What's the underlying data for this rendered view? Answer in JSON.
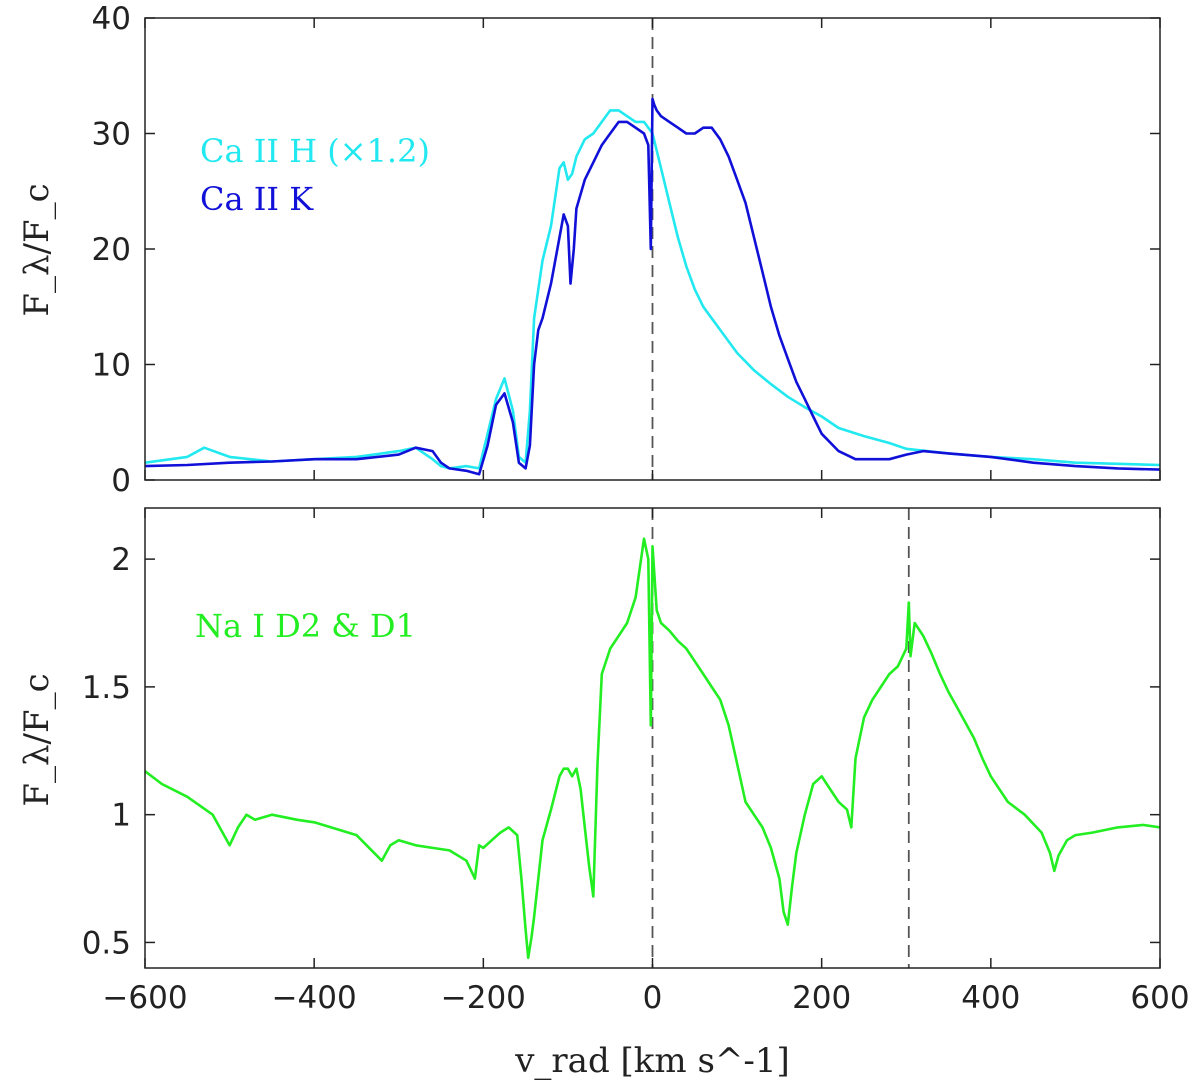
{
  "chart_data": [
    {
      "type": "line",
      "panel": "top",
      "ylabel": "F_λ/F_c",
      "xlim": [
        -600,
        600
      ],
      "ylim": [
        0,
        40
      ],
      "y_ticks": [
        0,
        10,
        20,
        30,
        40
      ],
      "x_tick_labels_shown": false,
      "reference_lines_x": [
        0
      ],
      "legend_placement": "upper-left",
      "series": [
        {
          "name": "Ca II H (×1.2)",
          "color": "#22e8f0",
          "x": [
            -600,
            -550,
            -530,
            -500,
            -450,
            -400,
            -350,
            -300,
            -280,
            -260,
            -250,
            -240,
            -220,
            -205,
            -195,
            -185,
            -175,
            -165,
            -158,
            -150,
            -145,
            -140,
            -130,
            -120,
            -110,
            -105,
            -100,
            -95,
            -90,
            -80,
            -70,
            -60,
            -50,
            -40,
            -30,
            -20,
            -10,
            -5,
            0,
            10,
            20,
            30,
            40,
            50,
            60,
            70,
            80,
            90,
            100,
            120,
            140,
            160,
            180,
            200,
            220,
            250,
            280,
            300,
            350,
            400,
            450,
            500,
            550,
            600
          ],
          "y": [
            1.5,
            2.0,
            2.8,
            2.0,
            1.6,
            1.8,
            2.0,
            2.5,
            2.8,
            1.8,
            1.2,
            1.0,
            1.2,
            1.0,
            4.0,
            7.0,
            8.8,
            6.0,
            2.0,
            1.5,
            6.0,
            14.0,
            19.0,
            22.0,
            27.0,
            27.5,
            26.0,
            26.5,
            28.0,
            29.5,
            30.0,
            31.0,
            32.0,
            32.0,
            31.5,
            31.0,
            31.0,
            30.5,
            30.0,
            27.0,
            24.0,
            21.0,
            18.5,
            16.5,
            15.0,
            14.0,
            13.0,
            12.0,
            11.0,
            9.5,
            8.3,
            7.2,
            6.3,
            5.5,
            4.5,
            3.8,
            3.2,
            2.7,
            2.3,
            2.0,
            1.8,
            1.5,
            1.4,
            1.3
          ]
        },
        {
          "name": "Ca II K",
          "color": "#1010d8",
          "x": [
            -600,
            -550,
            -500,
            -450,
            -400,
            -350,
            -300,
            -280,
            -260,
            -250,
            -240,
            -220,
            -205,
            -195,
            -185,
            -175,
            -165,
            -158,
            -150,
            -145,
            -140,
            -135,
            -130,
            -120,
            -110,
            -105,
            -100,
            -97,
            -93,
            -90,
            -80,
            -70,
            -60,
            -50,
            -40,
            -30,
            -20,
            -10,
            -5,
            -2,
            0,
            2,
            5,
            10,
            20,
            30,
            40,
            50,
            60,
            70,
            80,
            90,
            100,
            110,
            120,
            130,
            140,
            150,
            160,
            170,
            180,
            190,
            200,
            220,
            240,
            260,
            280,
            300,
            320,
            350,
            400,
            450,
            500,
            550,
            600
          ],
          "y": [
            1.2,
            1.3,
            1.5,
            1.6,
            1.8,
            1.8,
            2.2,
            2.8,
            2.5,
            1.5,
            1.0,
            0.8,
            0.5,
            3.0,
            6.5,
            7.5,
            5.0,
            1.5,
            1.0,
            3.0,
            10.0,
            13.0,
            14.0,
            17.0,
            21.0,
            23.0,
            22.0,
            17.0,
            20.0,
            23.5,
            26.0,
            27.5,
            29.0,
            30.0,
            31.0,
            31.0,
            30.5,
            30.0,
            29.0,
            20.0,
            33.0,
            32.5,
            32.0,
            31.5,
            31.0,
            30.5,
            30.0,
            30.0,
            30.5,
            30.5,
            29.5,
            28.0,
            26.0,
            24.0,
            21.0,
            18.0,
            15.0,
            12.5,
            10.5,
            8.5,
            7.0,
            5.5,
            4.0,
            2.5,
            1.8,
            1.8,
            1.8,
            2.2,
            2.5,
            2.3,
            2.0,
            1.5,
            1.2,
            1.0,
            0.9
          ]
        }
      ]
    },
    {
      "type": "line",
      "panel": "bottom",
      "xlabel": "v_rad [km s^-1]",
      "ylabel": "F_λ/F_c",
      "xlim": [
        -600,
        600
      ],
      "ylim": [
        0.4,
        2.2
      ],
      "y_ticks": [
        0.5,
        1,
        1.5,
        2
      ],
      "y_tick_labels": [
        "0.5",
        "1",
        "1.5",
        "2"
      ],
      "x_ticks": [
        -600,
        -400,
        -200,
        0,
        200,
        400,
        600
      ],
      "x_tick_labels": [
        "−600",
        "−400",
        "−200",
        "0",
        "200",
        "400",
        "600"
      ],
      "reference_lines_x": [
        0,
        303
      ],
      "legend_placement": "upper-left",
      "series": [
        {
          "name": "Na I D2 & D1",
          "color": "#22ee22",
          "x": [
            -600,
            -580,
            -550,
            -520,
            -500,
            -490,
            -480,
            -470,
            -450,
            -420,
            -400,
            -380,
            -350,
            -320,
            -310,
            -300,
            -280,
            -260,
            -240,
            -220,
            -210,
            -205,
            -200,
            -190,
            -180,
            -170,
            -160,
            -155,
            -150,
            -147,
            -143,
            -140,
            -130,
            -120,
            -110,
            -105,
            -100,
            -95,
            -90,
            -85,
            -80,
            -75,
            -70,
            -65,
            -60,
            -50,
            -40,
            -30,
            -20,
            -10,
            -5,
            -2,
            0,
            2,
            5,
            10,
            20,
            30,
            40,
            50,
            60,
            70,
            80,
            90,
            100,
            110,
            120,
            130,
            140,
            150,
            155,
            160,
            165,
            170,
            180,
            190,
            200,
            210,
            220,
            230,
            235,
            240,
            250,
            260,
            270,
            280,
            290,
            300,
            303,
            305,
            310,
            320,
            330,
            340,
            350,
            360,
            370,
            380,
            390,
            400,
            420,
            440,
            460,
            470,
            475,
            480,
            490,
            500,
            520,
            550,
            580,
            600
          ],
          "y": [
            1.17,
            1.12,
            1.07,
            1.0,
            0.88,
            0.95,
            1.0,
            0.98,
            1.0,
            0.98,
            0.97,
            0.95,
            0.92,
            0.82,
            0.88,
            0.9,
            0.88,
            0.87,
            0.86,
            0.82,
            0.75,
            0.88,
            0.87,
            0.9,
            0.93,
            0.95,
            0.92,
            0.75,
            0.55,
            0.44,
            0.52,
            0.6,
            0.9,
            1.02,
            1.15,
            1.18,
            1.18,
            1.15,
            1.18,
            1.1,
            0.95,
            0.8,
            0.68,
            1.2,
            1.55,
            1.65,
            1.7,
            1.75,
            1.85,
            2.08,
            2.0,
            1.35,
            2.05,
            1.95,
            1.8,
            1.75,
            1.72,
            1.68,
            1.65,
            1.6,
            1.55,
            1.5,
            1.45,
            1.35,
            1.2,
            1.05,
            1.0,
            0.95,
            0.87,
            0.75,
            0.62,
            0.57,
            0.72,
            0.85,
            1.0,
            1.12,
            1.15,
            1.1,
            1.05,
            1.02,
            0.95,
            1.22,
            1.38,
            1.45,
            1.5,
            1.55,
            1.58,
            1.65,
            1.83,
            1.62,
            1.75,
            1.7,
            1.63,
            1.55,
            1.48,
            1.42,
            1.36,
            1.3,
            1.22,
            1.15,
            1.05,
            1.0,
            0.93,
            0.85,
            0.78,
            0.84,
            0.9,
            0.92,
            0.93,
            0.95,
            0.96,
            0.95
          ]
        }
      ]
    }
  ]
}
